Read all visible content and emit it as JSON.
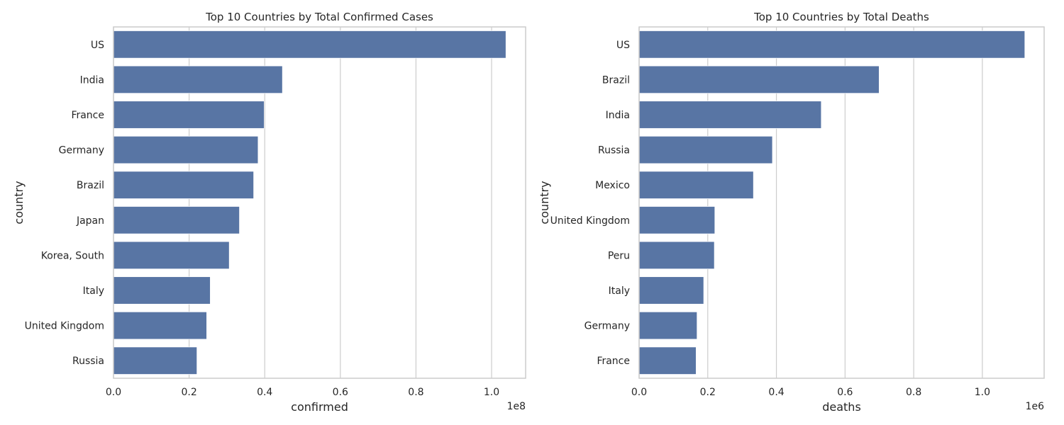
{
  "chart_data": [
    {
      "type": "bar",
      "orientation": "horizontal",
      "title": "Top 10 Countries by Total Confirmed Cases",
      "xlabel": "confirmed",
      "ylabel": "country",
      "offset_label": "1e8",
      "scale": 100000000,
      "xlim": [
        0,
        1.09
      ],
      "xticks": [
        "0.0",
        "0.2",
        "0.4",
        "0.6",
        "0.8",
        "1.0"
      ],
      "grid": true,
      "color": "#5875a4",
      "categories": [
        "US",
        "India",
        "France",
        "Germany",
        "Brazil",
        "Japan",
        "Korea, South",
        "Italy",
        "United Kingdom",
        "Russia"
      ],
      "values": [
        103800000,
        44690000,
        39870000,
        38250000,
        37080000,
        33320000,
        30620000,
        25600000,
        24660000,
        22080000
      ]
    },
    {
      "type": "bar",
      "orientation": "horizontal",
      "title": "Top 10 Countries by Total Deaths",
      "xlabel": "deaths",
      "ylabel": "country",
      "offset_label": "1e6",
      "scale": 1000000,
      "xlim": [
        0,
        1.18
      ],
      "xticks": [
        "0.0",
        "0.2",
        "0.4",
        "0.6",
        "0.8",
        "1.0"
      ],
      "grid": true,
      "color": "#5875a4",
      "categories": [
        "US",
        "Brazil",
        "India",
        "Russia",
        "Mexico",
        "United Kingdom",
        "Peru",
        "Italy",
        "Germany",
        "France"
      ],
      "values": [
        1123800,
        699300,
        530800,
        388500,
        333200,
        220700,
        219300,
        188300,
        168900,
        166100
      ]
    }
  ]
}
